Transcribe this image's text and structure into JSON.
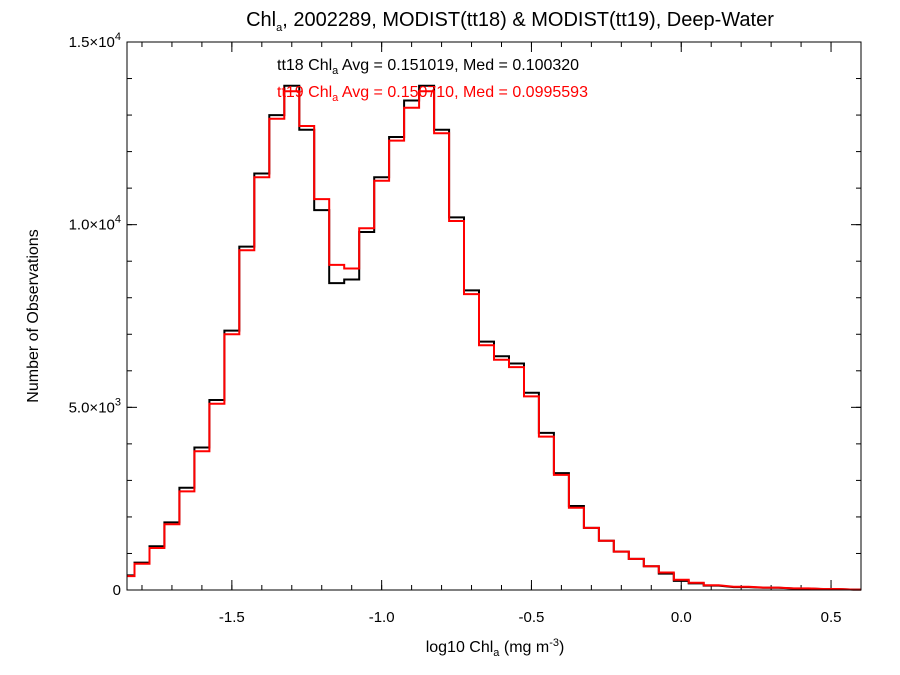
{
  "chart_data": {
    "type": "line",
    "step": true,
    "title": {
      "prefix": "Chl",
      "sub": "a",
      "rest": ", 2002289, MODIST(tt18) & MODIST(tt19), Deep-Water"
    },
    "xlabel": {
      "prefix": "log10 Chl",
      "sub": "a",
      "mid": " (mg m",
      "sup": "-3",
      "end": ")"
    },
    "ylabel": "Number of Observations",
    "xlim": [
      -1.85,
      0.6
    ],
    "ylim": [
      0,
      15000
    ],
    "x_ticks": [
      {
        "value": -1.5,
        "label": "-1.5"
      },
      {
        "value": -1.0,
        "label": "-1.0"
      },
      {
        "value": -0.5,
        "label": "-0.5"
      },
      {
        "value": 0.0,
        "label": "0.0"
      },
      {
        "value": 0.5,
        "label": "0.5"
      }
    ],
    "y_ticks": [
      {
        "value": 0,
        "mant": "0",
        "exp": ""
      },
      {
        "value": 5000,
        "mant": "5.0×10",
        "exp": "3"
      },
      {
        "value": 10000,
        "mant": "1.0×10",
        "exp": "4"
      },
      {
        "value": 15000,
        "mant": "1.5×10",
        "exp": "4"
      }
    ],
    "annotations": [
      {
        "series": "tt18",
        "color": "#000000",
        "pre": "tt18 Chl",
        "sub": "a",
        "post": " Avg = 0.151019, Med = 0.100320"
      },
      {
        "series": "tt19",
        "color": "#ff0000",
        "pre": "tt19 Chl",
        "sub": "a",
        "post": " Avg = 0.150710, Med = 0.0995593"
      }
    ],
    "series": [
      {
        "name": "tt18",
        "color": "#000000",
        "x": [
          -1.85,
          -1.8,
          -1.75,
          -1.7,
          -1.65,
          -1.6,
          -1.55,
          -1.5,
          -1.45,
          -1.4,
          -1.35,
          -1.3,
          -1.25,
          -1.2,
          -1.15,
          -1.1,
          -1.05,
          -1.0,
          -0.95,
          -0.9,
          -0.85,
          -0.8,
          -0.75,
          -0.7,
          -0.65,
          -0.6,
          -0.55,
          -0.5,
          -0.45,
          -0.4,
          -0.35,
          -0.3,
          -0.25,
          -0.2,
          -0.15,
          -0.1,
          -0.05,
          0.0,
          0.05,
          0.1,
          0.2,
          0.3,
          0.4,
          0.5,
          0.6
        ],
        "y": [
          400,
          750,
          1200,
          1850,
          2800,
          3900,
          5200,
          7100,
          9400,
          11400,
          13000,
          13800,
          12600,
          10400,
          8400,
          8500,
          9800,
          11300,
          12400,
          13400,
          13800,
          12600,
          10200,
          8200,
          6800,
          6400,
          6200,
          5400,
          4300,
          3200,
          2300,
          1700,
          1350,
          1050,
          850,
          650,
          450,
          250,
          180,
          120,
          80,
          60,
          40,
          25,
          10
        ]
      },
      {
        "name": "tt19",
        "color": "#ff0000",
        "x": [
          -1.85,
          -1.8,
          -1.75,
          -1.7,
          -1.65,
          -1.6,
          -1.55,
          -1.5,
          -1.45,
          -1.4,
          -1.35,
          -1.3,
          -1.25,
          -1.2,
          -1.15,
          -1.1,
          -1.05,
          -1.0,
          -0.95,
          -0.9,
          -0.85,
          -0.8,
          -0.75,
          -0.7,
          -0.65,
          -0.6,
          -0.55,
          -0.5,
          -0.45,
          -0.4,
          -0.35,
          -0.3,
          -0.25,
          -0.2,
          -0.15,
          -0.1,
          -0.05,
          0.0,
          0.05,
          0.1,
          0.2,
          0.3,
          0.4,
          0.5,
          0.6
        ],
        "y": [
          380,
          720,
          1150,
          1800,
          2700,
          3800,
          5100,
          7000,
          9300,
          11300,
          12900,
          13650,
          12700,
          10700,
          8900,
          8800,
          9900,
          11200,
          12300,
          13200,
          13650,
          12500,
          10100,
          8100,
          6700,
          6300,
          6100,
          5300,
          4200,
          3150,
          2250,
          1700,
          1350,
          1050,
          850,
          650,
          480,
          280,
          200,
          130,
          90,
          65,
          45,
          28,
          12
        ]
      }
    ],
    "grid": false,
    "legend": "none"
  }
}
